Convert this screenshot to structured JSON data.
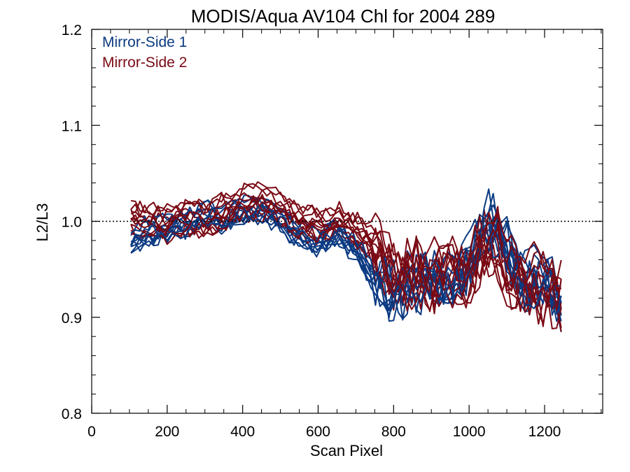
{
  "chart_data": {
    "type": "line",
    "title": "MODIS/Aqua AV104 Chl for 2004 289",
    "xlabel": "Scan Pixel",
    "ylabel": "L2/L3",
    "xlim": [
      0,
      1354
    ],
    "ylim": [
      0.8,
      1.2
    ],
    "x_ticks": [
      "0",
      "200",
      "400",
      "600",
      "800",
      "1000",
      "1200"
    ],
    "y_ticks": [
      "0.8",
      "0.9",
      "1.0",
      "1.1",
      "1.2"
    ],
    "reference_line": {
      "y": 1.0,
      "style": "dotted"
    },
    "legend_position": "top-left",
    "colors": {
      "mirror_side_1": "#0b3a82",
      "mirror_side_2": "#7a0a14"
    },
    "series": [
      {
        "name": "Mirror-Side 1",
        "color": "#0b3a82",
        "x": [
          104,
          150,
          200,
          250,
          300,
          350,
          400,
          450,
          500,
          550,
          600,
          650,
          700,
          750,
          800,
          850,
          900,
          950,
          1000,
          1040,
          1080,
          1100,
          1150,
          1200,
          1250
        ],
        "mean": [
          0.984,
          0.994,
          0.998,
          1.003,
          1.012,
          1.006,
          1.016,
          1.018,
          1.005,
          0.99,
          0.982,
          0.993,
          0.975,
          0.945,
          0.935,
          0.943,
          0.95,
          0.945,
          0.965,
          1.005,
          1.0,
          0.98,
          0.945,
          0.945,
          0.918
        ],
        "count": 10
      },
      {
        "name": "Mirror-Side 2",
        "color": "#7a0a14",
        "x": [
          104,
          150,
          200,
          250,
          300,
          350,
          400,
          450,
          500,
          550,
          600,
          650,
          700,
          750,
          800,
          850,
          900,
          950,
          1000,
          1040,
          1080,
          1100,
          1150,
          1200,
          1250
        ],
        "mean": [
          1.003,
          1.0,
          0.997,
          1.005,
          1.002,
          1.01,
          1.018,
          1.02,
          1.012,
          1.0,
          0.995,
          1.0,
          0.99,
          0.975,
          0.945,
          0.945,
          0.945,
          0.948,
          0.95,
          0.975,
          0.975,
          0.95,
          0.94,
          0.93,
          0.925
        ],
        "count": 12
      }
    ],
    "legend": [
      {
        "label": "Mirror-Side 1",
        "color": "#0b3a82"
      },
      {
        "label": "Mirror-Side 2",
        "color": "#7a0a14"
      }
    ]
  }
}
